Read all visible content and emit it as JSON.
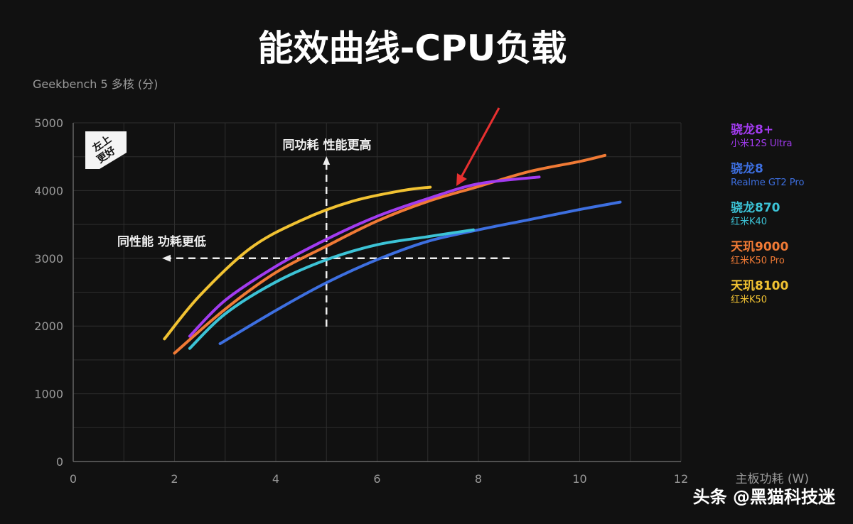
{
  "title": "能效曲线-CPU负载",
  "watermark": "头条 @黑猫科技迷",
  "badge": [
    "左上",
    "更好"
  ],
  "annotations": {
    "vertical": "同功耗 性能更高",
    "horizontal": "同性能 功耗更低"
  },
  "chart_data": {
    "type": "line",
    "title": "能效曲线-CPU负载",
    "xlabel": "主板功耗 (W)",
    "ylabel": "Geekbench 5 多核 (分)",
    "xlim": [
      0,
      12
    ],
    "ylim": [
      0,
      5000
    ],
    "xticks": [
      "0",
      "2",
      "4",
      "6",
      "8",
      "10",
      "12"
    ],
    "yticks": [
      "0",
      "1000",
      "2000",
      "3000",
      "4000",
      "5000"
    ],
    "grid": true,
    "legend_position": "right",
    "guides": {
      "x": 5,
      "y": 3000
    },
    "series": [
      {
        "name": "骁龙8+",
        "device": "小米12S Ultra",
        "color": "#a23bf0",
        "points": [
          [
            2.3,
            1850
          ],
          [
            3,
            2380
          ],
          [
            4,
            2880
          ],
          [
            5,
            3280
          ],
          [
            6,
            3620
          ],
          [
            7,
            3880
          ],
          [
            8,
            4100
          ],
          [
            9.2,
            4200
          ]
        ]
      },
      {
        "name": "骁龙8",
        "device": "Realme GT2 Pro",
        "color": "#3d6fe0",
        "points": [
          [
            2.9,
            1740
          ],
          [
            4,
            2230
          ],
          [
            5,
            2640
          ],
          [
            6,
            2980
          ],
          [
            7,
            3250
          ],
          [
            8,
            3420
          ],
          [
            9,
            3570
          ],
          [
            10,
            3720
          ],
          [
            10.8,
            3830
          ]
        ]
      },
      {
        "name": "骁龙870",
        "device": "红米K40",
        "color": "#3cc3d6",
        "points": [
          [
            2.3,
            1670
          ],
          [
            3,
            2180
          ],
          [
            4,
            2650
          ],
          [
            5,
            2980
          ],
          [
            6,
            3200
          ],
          [
            7,
            3320
          ],
          [
            7.9,
            3420
          ]
        ]
      },
      {
        "name": "天玑9000",
        "device": "红米K50 Pro",
        "color": "#f07a35",
        "points": [
          [
            2,
            1600
          ],
          [
            3,
            2250
          ],
          [
            4,
            2790
          ],
          [
            5,
            3180
          ],
          [
            6,
            3550
          ],
          [
            7,
            3840
          ],
          [
            8,
            4060
          ],
          [
            9,
            4280
          ],
          [
            10,
            4430
          ],
          [
            10.5,
            4520
          ]
        ]
      },
      {
        "name": "天玑8100",
        "device": "红米K50",
        "color": "#f1c232",
        "points": [
          [
            1.8,
            1810
          ],
          [
            2.5,
            2450
          ],
          [
            3.5,
            3150
          ],
          [
            4.5,
            3560
          ],
          [
            5.5,
            3840
          ],
          [
            6.5,
            4000
          ],
          [
            7.05,
            4050
          ]
        ]
      }
    ]
  }
}
